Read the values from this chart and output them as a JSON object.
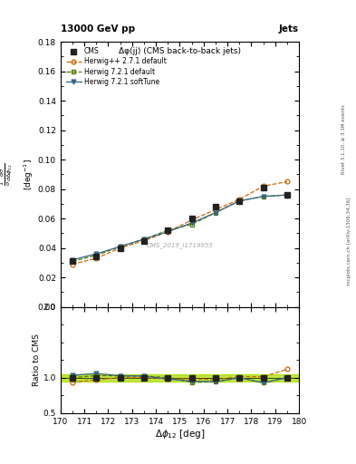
{
  "title_top": "13000 GeV pp",
  "title_right": "Jets",
  "plot_title": "Δφ(jj) (CMS back-to-back jets)",
  "cms_label": "CMS_2019_I1719955",
  "rivet_label": "Rivet 3.1.10, ≥ 3.1M events",
  "arxiv_label": "mcplots.cern.ch [arXiv:1306.34,36]",
  "xlim": [
    170,
    180
  ],
  "ylim_main": [
    0.0,
    0.18
  ],
  "ylim_ratio": [
    0.5,
    2.0
  ],
  "x_data": [
    170.5,
    171.5,
    172.5,
    173.5,
    174.5,
    175.5,
    176.5,
    177.5,
    178.5,
    179.5
  ],
  "cms_y": [
    0.031,
    0.034,
    0.04,
    0.045,
    0.052,
    0.06,
    0.068,
    0.072,
    0.081,
    0.076
  ],
  "cms_yerr": [
    0.0008,
    0.0008,
    0.0008,
    0.0008,
    0.001,
    0.001,
    0.001,
    0.001,
    0.0015,
    0.0015
  ],
  "herwig_pp_y": [
    0.029,
    0.033,
    0.04,
    0.045,
    0.051,
    0.059,
    0.066,
    0.073,
    0.082,
    0.085
  ],
  "herwig_721_y": [
    0.031,
    0.035,
    0.041,
    0.046,
    0.052,
    0.056,
    0.064,
    0.072,
    0.075,
    0.076
  ],
  "herwig_soft_y": [
    0.032,
    0.036,
    0.041,
    0.046,
    0.051,
    0.057,
    0.064,
    0.072,
    0.075,
    0.076
  ],
  "herwig_pp_ratio": [
    0.935,
    0.97,
    1.0,
    1.0,
    0.981,
    0.983,
    0.971,
    1.014,
    1.012,
    1.118
  ],
  "herwig_721_ratio": [
    1.0,
    1.029,
    1.025,
    1.022,
    1.0,
    0.933,
    0.941,
    1.0,
    0.926,
    1.0
  ],
  "herwig_soft_ratio": [
    1.032,
    1.059,
    1.025,
    1.022,
    0.981,
    0.95,
    0.941,
    1.0,
    0.926,
    1.0
  ],
  "color_cms": "#222222",
  "color_herwig_pp": "#cc6600",
  "color_herwig_721": "#557700",
  "color_herwig_soft": "#336688",
  "band_color": "#aadd00",
  "bg": "#ffffff"
}
